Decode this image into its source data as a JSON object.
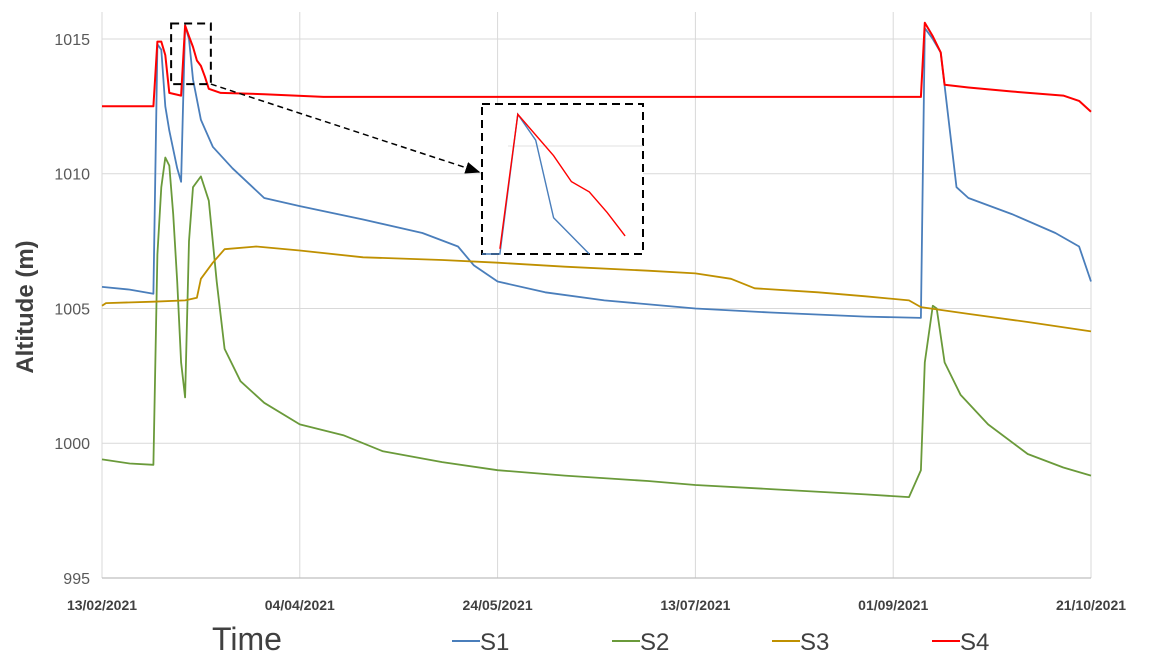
{
  "chart_data": {
    "type": "line",
    "title": "",
    "xlabel": "Time",
    "ylabel": "Altitude (m)",
    "xlim": [
      "13/02/2021",
      "21/10/2021"
    ],
    "ylim": [
      995,
      1016
    ],
    "y_ticks": [
      995,
      1000,
      1005,
      1010,
      1015
    ],
    "x_ticks": [
      "13/02/2021",
      "04/04/2021",
      "24/05/2021",
      "13/07/2021",
      "01/09/2021",
      "21/10/2021"
    ],
    "grid": "vertical and horizontal major gridlines",
    "legend": "bottom",
    "inset": {
      "description": "zoomed view of S1 and S4 around 05/03/2021 - 11/03/2021",
      "x_range": [
        "05/03/2021",
        "11/03/2021"
      ],
      "y_range": [
        1013.4,
        1015.5
      ]
    },
    "series": [
      {
        "name": "S1",
        "color": "#4a7ebb",
        "points": [
          [
            "13/02/2021",
            1005.8
          ],
          [
            "20/02/2021",
            1005.7
          ],
          [
            "26/02/2021",
            1005.55
          ],
          [
            "27/02/2021",
            1014.8
          ],
          [
            "28/02/2021",
            1014.6
          ],
          [
            "01/03/2021",
            1012.5
          ],
          [
            "02/03/2021",
            1011.6
          ],
          [
            "04/03/2021",
            1010.2
          ],
          [
            "05/03/2021",
            1009.7
          ],
          [
            "06/03/2021",
            1015.5
          ],
          [
            "07/03/2021",
            1015.0
          ],
          [
            "08/03/2021",
            1013.5
          ],
          [
            "10/03/2021",
            1012.0
          ],
          [
            "13/03/2021",
            1011.0
          ],
          [
            "18/03/2021",
            1010.2
          ],
          [
            "26/03/2021",
            1009.1
          ],
          [
            "04/04/2021",
            1008.8
          ],
          [
            "20/04/2021",
            1008.3
          ],
          [
            "05/05/2021",
            1007.8
          ],
          [
            "14/05/2021",
            1007.3
          ],
          [
            "18/05/2021",
            1006.6
          ],
          [
            "24/05/2021",
            1006.0
          ],
          [
            "05/06/2021",
            1005.6
          ],
          [
            "20/06/2021",
            1005.3
          ],
          [
            "13/07/2021",
            1005.0
          ],
          [
            "01/08/2021",
            1004.85
          ],
          [
            "25/08/2021",
            1004.7
          ],
          [
            "08/09/2021",
            1004.65
          ],
          [
            "09/09/2021",
            1015.4
          ],
          [
            "11/09/2021",
            1015.0
          ],
          [
            "13/09/2021",
            1014.5
          ],
          [
            "15/09/2021",
            1012.0
          ],
          [
            "17/09/2021",
            1009.5
          ],
          [
            "20/09/2021",
            1009.1
          ],
          [
            "01/10/2021",
            1008.5
          ],
          [
            "12/10/2021",
            1007.8
          ],
          [
            "18/10/2021",
            1007.3
          ],
          [
            "21/10/2021",
            1006.0
          ]
        ]
      },
      {
        "name": "S2",
        "color": "#6a9a3a",
        "points": [
          [
            "13/02/2021",
            999.4
          ],
          [
            "20/02/2021",
            999.25
          ],
          [
            "26/02/2021",
            999.2
          ],
          [
            "27/02/2021",
            1007.0
          ],
          [
            "28/02/2021",
            1009.5
          ],
          [
            "01/03/2021",
            1010.6
          ],
          [
            "02/03/2021",
            1010.3
          ],
          [
            "03/03/2021",
            1008.5
          ],
          [
            "04/03/2021",
            1006.0
          ],
          [
            "05/03/2021",
            1003.0
          ],
          [
            "06/03/2021",
            1001.7
          ],
          [
            "07/03/2021",
            1007.5
          ],
          [
            "08/03/2021",
            1009.5
          ],
          [
            "10/03/2021",
            1009.9
          ],
          [
            "12/03/2021",
            1009.0
          ],
          [
            "14/03/2021",
            1006.0
          ],
          [
            "16/03/2021",
            1003.5
          ],
          [
            "20/03/2021",
            1002.3
          ],
          [
            "26/03/2021",
            1001.5
          ],
          [
            "04/04/2021",
            1000.7
          ],
          [
            "15/04/2021",
            1000.3
          ],
          [
            "25/04/2021",
            999.7
          ],
          [
            "10/05/2021",
            999.3
          ],
          [
            "24/05/2021",
            999.0
          ],
          [
            "10/06/2021",
            998.8
          ],
          [
            "01/07/2021",
            998.6
          ],
          [
            "13/07/2021",
            998.45
          ],
          [
            "01/08/2021",
            998.3
          ],
          [
            "25/08/2021",
            998.1
          ],
          [
            "05/09/2021",
            998.0
          ],
          [
            "08/09/2021",
            999.0
          ],
          [
            "09/09/2021",
            1003.0
          ],
          [
            "11/09/2021",
            1005.1
          ],
          [
            "12/09/2021",
            1005.0
          ],
          [
            "14/09/2021",
            1003.0
          ],
          [
            "18/09/2021",
            1001.8
          ],
          [
            "25/09/2021",
            1000.7
          ],
          [
            "05/10/2021",
            999.6
          ],
          [
            "14/10/2021",
            999.1
          ],
          [
            "21/10/2021",
            998.8
          ]
        ]
      },
      {
        "name": "S3",
        "color": "#bf9000",
        "points": [
          [
            "13/02/2021",
            1005.1
          ],
          [
            "14/02/2021",
            1005.2
          ],
          [
            "26/02/2021",
            1005.25
          ],
          [
            "06/03/2021",
            1005.3
          ],
          [
            "09/03/2021",
            1005.4
          ],
          [
            "10/03/2021",
            1006.1
          ],
          [
            "13/03/2021",
            1006.7
          ],
          [
            "16/03/2021",
            1007.2
          ],
          [
            "24/03/2021",
            1007.3
          ],
          [
            "04/04/2021",
            1007.15
          ],
          [
            "20/04/2021",
            1006.9
          ],
          [
            "10/05/2021",
            1006.8
          ],
          [
            "24/05/2021",
            1006.7
          ],
          [
            "10/06/2021",
            1006.55
          ],
          [
            "01/07/2021",
            1006.4
          ],
          [
            "13/07/2021",
            1006.3
          ],
          [
            "22/07/2021",
            1006.1
          ],
          [
            "28/07/2021",
            1005.75
          ],
          [
            "13/08/2021",
            1005.6
          ],
          [
            "25/08/2021",
            1005.45
          ],
          [
            "05/09/2021",
            1005.3
          ],
          [
            "08/09/2021",
            1005.05
          ],
          [
            "20/09/2021",
            1004.8
          ],
          [
            "05/10/2021",
            1004.5
          ],
          [
            "21/10/2021",
            1004.15
          ]
        ]
      },
      {
        "name": "S4",
        "color": "#ff0000",
        "points": [
          [
            "13/02/2021",
            1012.5
          ],
          [
            "26/02/2021",
            1012.5
          ],
          [
            "27/02/2021",
            1014.9
          ],
          [
            "28/02/2021",
            1014.9
          ],
          [
            "01/03/2021",
            1014.4
          ],
          [
            "02/03/2021",
            1013.0
          ],
          [
            "05/03/2021",
            1012.9
          ],
          [
            "06/03/2021",
            1015.5
          ],
          [
            "07/03/2021",
            1015.1
          ],
          [
            "08/03/2021",
            1014.7
          ],
          [
            "09/03/2021",
            1014.2
          ],
          [
            "10/03/2021",
            1014.0
          ],
          [
            "11/03/2021",
            1013.6
          ],
          [
            "12/03/2021",
            1013.15
          ],
          [
            "15/03/2021",
            1013.0
          ],
          [
            "26/03/2021",
            1012.95
          ],
          [
            "10/04/2021",
            1012.85
          ],
          [
            "24/05/2021",
            1012.85
          ],
          [
            "13/07/2021",
            1012.85
          ],
          [
            "08/09/2021",
            1012.85
          ],
          [
            "09/09/2021",
            1015.6
          ],
          [
            "11/09/2021",
            1015.1
          ],
          [
            "13/09/2021",
            1014.5
          ],
          [
            "14/09/2021",
            1013.3
          ],
          [
            "20/09/2021",
            1013.2
          ],
          [
            "01/10/2021",
            1013.05
          ],
          [
            "14/10/2021",
            1012.9
          ],
          [
            "18/10/2021",
            1012.7
          ],
          [
            "21/10/2021",
            1012.3
          ]
        ]
      }
    ]
  }
}
